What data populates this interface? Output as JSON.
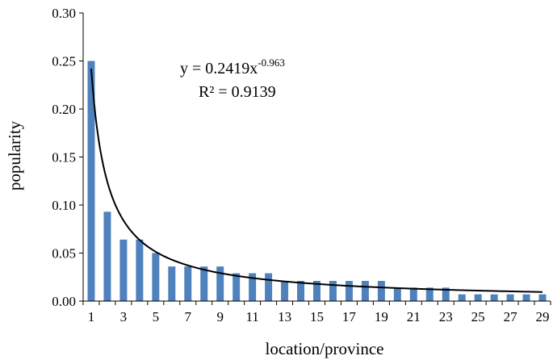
{
  "chart_data": {
    "type": "bar",
    "x": [
      1,
      2,
      3,
      4,
      5,
      6,
      7,
      8,
      9,
      10,
      11,
      12,
      13,
      14,
      15,
      16,
      17,
      18,
      19,
      20,
      21,
      22,
      23,
      24,
      25,
      26,
      27,
      28,
      29
    ],
    "values": [
      0.25,
      0.093,
      0.064,
      0.064,
      0.05,
      0.036,
      0.036,
      0.036,
      0.036,
      0.029,
      0.029,
      0.029,
      0.021,
      0.021,
      0.021,
      0.021,
      0.021,
      0.021,
      0.021,
      0.014,
      0.014,
      0.014,
      0.014,
      0.007,
      0.007,
      0.007,
      0.007,
      0.007,
      0.007
    ],
    "x_tick_labels": [
      "1",
      "3",
      "5",
      "7",
      "9",
      "11",
      "13",
      "15",
      "17",
      "19",
      "21",
      "23",
      "25",
      "27",
      "29"
    ],
    "y_tick_labels": [
      "0.00",
      "0.05",
      "0.10",
      "0.15",
      "0.20",
      "0.25",
      "0.30"
    ],
    "ylim": [
      0,
      0.3
    ],
    "xlabel": "location/province",
    "ylabel": "popularity",
    "grid": false,
    "legend": "none",
    "bar_color": "#4f81bd",
    "trendline": {
      "type": "power",
      "a": 0.2419,
      "b": -0.963,
      "color": "#000000",
      "equation_main": "y = 0.2419x",
      "equation_exponent": "-0.963",
      "r2_text": "R² = 0.9139"
    }
  }
}
